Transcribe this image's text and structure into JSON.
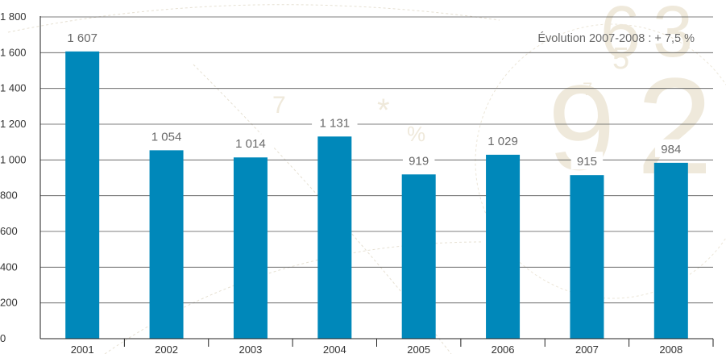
{
  "chart_data": {
    "type": "bar",
    "title": "",
    "xlabel": "",
    "ylabel": "",
    "categories": [
      "2001",
      "2002",
      "2003",
      "2004",
      "2005",
      "2006",
      "2007",
      "2008"
    ],
    "values": [
      1607,
      1054,
      1014,
      1131,
      919,
      1029,
      915,
      984
    ],
    "data_labels": [
      "1 607",
      "1 054",
      "1 014",
      "1 131",
      "919",
      "1 029",
      "915",
      "984"
    ],
    "ylim": [
      0,
      1800
    ],
    "y_ticks": [
      0,
      200,
      400,
      600,
      800,
      1000,
      1200,
      1400,
      1600,
      1800
    ],
    "y_tick_labels": [
      "0",
      "200",
      "400",
      "600",
      "800",
      "1 000",
      "1 200",
      "1 400",
      "1 600",
      "1 800"
    ],
    "annotation": "Évolution 2007-2008 : + 7,5 %",
    "grid": true,
    "colors": {
      "bar": "#0088ba",
      "grid": "#555555",
      "label": "#6a6a6a",
      "background_decor": "#efe9db"
    }
  }
}
